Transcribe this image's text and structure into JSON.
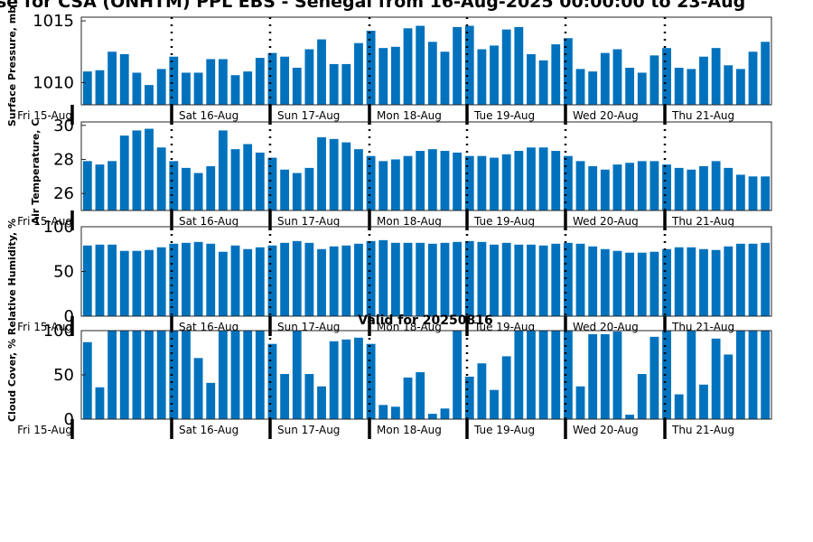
{
  "title": "se for CSA (ONHTM) PPL EBS  - Senegal from 16-Aug-2025 00:00:00 to 23-Aug",
  "subtitle": "Valid for 20250816",
  "day_labels": [
    "Fri 15-Aug",
    "Sat 16-Aug",
    "Sun 17-Aug",
    "Mon 18-Aug",
    "Tue 19-Aug",
    "Wed 20-Aug",
    "Thu 21-Aug"
  ],
  "bar_color": "#0072BD",
  "chart_data": [
    {
      "type": "bar",
      "ylabel": "Surface Pressure, mb",
      "ylim": [
        1008.2,
        1015.3
      ],
      "yticks": [
        1010,
        1015
      ],
      "values": [
        1010.9,
        1011.0,
        1012.5,
        1012.3,
        1010.8,
        1009.8,
        1011.1,
        1012.1,
        1010.8,
        1010.8,
        1011.9,
        1011.9,
        1010.6,
        1010.9,
        1012.0,
        1012.4,
        1012.1,
        1011.2,
        1012.7,
        1013.5,
        1011.5,
        1011.5,
        1013.2,
        1014.2,
        1012.8,
        1012.9,
        1014.4,
        1014.6,
        1013.3,
        1012.5,
        1014.5,
        1014.6,
        1012.7,
        1013.0,
        1014.3,
        1014.5,
        1012.3,
        1011.8,
        1013.1,
        1013.6,
        1011.1,
        1010.9,
        1012.4,
        1012.7,
        1011.2,
        1010.8,
        1012.2,
        1012.8,
        1011.2,
        1011.1,
        1012.1,
        1012.8,
        1011.4,
        1011.1,
        1012.5,
        1013.3
      ]
    },
    {
      "type": "bar",
      "ylabel": "Air Temperature, C",
      "ylim": [
        25.0,
        30.2
      ],
      "yticks": [
        26,
        28,
        30
      ],
      "values": [
        27.9,
        27.7,
        27.9,
        29.4,
        29.7,
        29.8,
        28.7,
        27.9,
        27.5,
        27.2,
        27.6,
        29.7,
        28.6,
        28.9,
        28.4,
        28.1,
        27.4,
        27.2,
        27.5,
        29.3,
        29.2,
        29.0,
        28.6,
        28.2,
        27.9,
        28.0,
        28.2,
        28.5,
        28.6,
        28.5,
        28.4,
        28.2,
        28.2,
        28.1,
        28.3,
        28.5,
        28.7,
        28.7,
        28.5,
        28.2,
        27.9,
        27.6,
        27.4,
        27.7,
        27.8,
        27.9,
        27.9,
        27.7,
        27.5,
        27.4,
        27.6,
        27.9,
        27.5,
        27.1,
        27.0,
        27.0
      ]
    },
    {
      "type": "bar",
      "ylabel": "Relative Humidity, %",
      "ylim": [
        0,
        100
      ],
      "yticks": [
        0,
        50,
        100
      ],
      "values": [
        79,
        80,
        80,
        73,
        73,
        74,
        77,
        81,
        82,
        83,
        81,
        72,
        79,
        75,
        77,
        79,
        82,
        84,
        82,
        75,
        78,
        79,
        81,
        84,
        85,
        82,
        82,
        82,
        81,
        82,
        83,
        84,
        83,
        80,
        82,
        80,
        80,
        79,
        81,
        82,
        81,
        78,
        75,
        73,
        71,
        71,
        72,
        75,
        77,
        77,
        75,
        74,
        78,
        81,
        81,
        82
      ]
    },
    {
      "type": "bar",
      "ylabel": "Cloud Cover, %",
      "ylim": [
        0,
        100
      ],
      "yticks": [
        0,
        50,
        100
      ],
      "values": [
        87,
        36,
        100,
        100,
        100,
        100,
        100,
        100,
        100,
        69,
        41,
        100,
        100,
        100,
        100,
        85,
        51,
        100,
        51,
        37,
        88,
        90,
        92,
        85,
        16,
        14,
        47,
        53,
        6,
        12,
        100,
        48,
        63,
        33,
        71,
        100,
        100,
        100,
        100,
        100,
        37,
        96,
        96,
        99,
        5,
        51,
        93,
        100,
        28,
        100,
        39,
        91,
        73,
        100,
        100,
        100
      ]
    }
  ]
}
